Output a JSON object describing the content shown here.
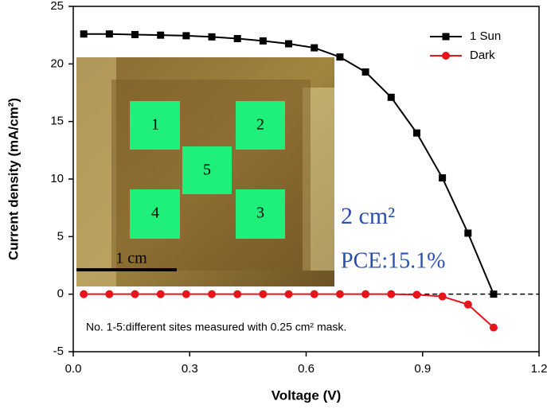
{
  "chart_data": {
    "type": "line",
    "x_label": "Voltage (V)",
    "y_label": "Current density (mA/cm²)",
    "xlim": [
      0,
      1.2
    ],
    "ylim": [
      -5,
      25
    ],
    "xticks": [
      {
        "value": 0,
        "label": "0.0"
      },
      0.3,
      0.6,
      0.9,
      1.2
    ],
    "yticks": [
      -5,
      0,
      5,
      10,
      15,
      20,
      25
    ],
    "hline": 0,
    "legend": "top-right",
    "series": [
      {
        "name": "1 Sun",
        "color": "#000000",
        "marker": "square",
        "x": [
          0.027,
          0.093,
          0.159,
          0.225,
          0.291,
          0.357,
          0.423,
          0.489,
          0.555,
          0.621,
          0.687,
          0.753,
          0.819,
          0.885,
          0.951,
          1.017,
          1.083
        ],
        "values": [
          22.6,
          22.6,
          22.55,
          22.5,
          22.45,
          22.35,
          22.2,
          22.0,
          21.75,
          21.4,
          20.6,
          19.3,
          17.1,
          14.0,
          10.1,
          5.3,
          0.0
        ]
      },
      {
        "name": "Dark",
        "color": "#e8141c",
        "marker": "circle",
        "x": [
          0.027,
          0.093,
          0.159,
          0.225,
          0.291,
          0.357,
          0.423,
          0.489,
          0.555,
          0.621,
          0.687,
          0.753,
          0.819,
          0.885,
          0.951,
          1.017,
          1.083
        ],
        "values": [
          0,
          0,
          0,
          0,
          0,
          0,
          0,
          0,
          0,
          0,
          0,
          0,
          0,
          -0.05,
          -0.2,
          -0.9,
          -2.9
        ]
      }
    ],
    "annotations": [
      "1",
      "2",
      "5",
      "4",
      "3",
      "1 cm",
      "2 cm²",
      "PCE:15.1%",
      "No. 1-5:different sites measured with 0.25 cm² mask."
    ]
  }
}
